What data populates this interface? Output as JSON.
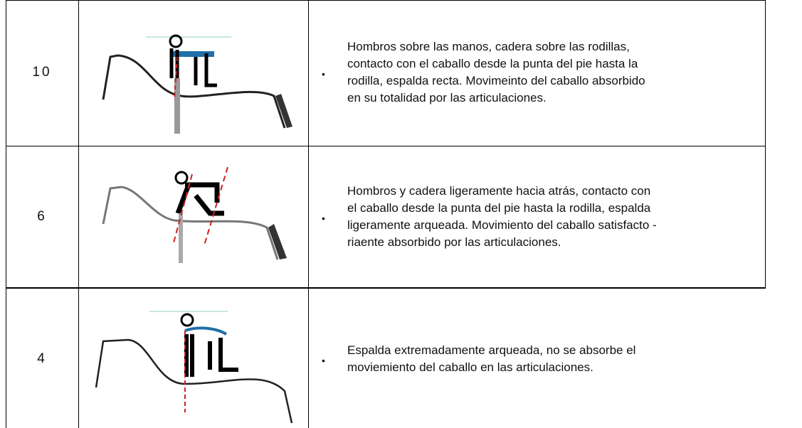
{
  "table": {
    "rows": [
      {
        "score": "10",
        "lines": [
          "Hombros sobre las manos, cadera sobre las rodillas,",
          "contacto con el caballo desde la punta del pie hasta la",
          "rodilla, espalda recta. Movimeinto del caballo absorbido",
          "en su totalidad por las articulaciones."
        ]
      },
      {
        "score": "6",
        "lines": [
          "Hombros y cadera ligeramente hacia atrás, contacto con",
          "el caballo desde la punta del pie hasta la rodilla, espalda",
          "ligeramente arqueada. Movimiento del caballo satisfacto        -",
          "riaente absorbido por las articulaciones."
        ]
      },
      {
        "score": "4",
        "lines": [
          "Espalda extremadamente arqueada, no se absorbe el",
          "moviemiento del caballo en las articulaciones."
        ]
      }
    ]
  }
}
